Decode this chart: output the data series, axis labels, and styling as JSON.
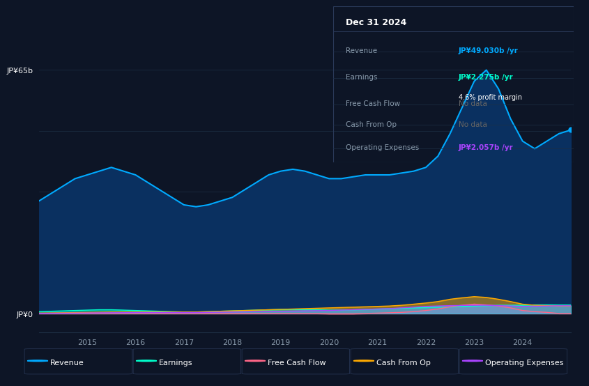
{
  "background_color": "#0d1526",
  "chart_bg_color": "#0d1526",
  "grid_color": "#1e2f45",
  "text_color": "#ffffff",
  "axis_label_color": "#8899aa",
  "years": [
    2014.0,
    2014.25,
    2014.5,
    2014.75,
    2015.0,
    2015.25,
    2015.5,
    2015.75,
    2016.0,
    2016.25,
    2016.5,
    2016.75,
    2017.0,
    2017.25,
    2017.5,
    2017.75,
    2018.0,
    2018.25,
    2018.5,
    2018.75,
    2019.0,
    2019.25,
    2019.5,
    2019.75,
    2020.0,
    2020.25,
    2020.5,
    2020.75,
    2021.0,
    2021.25,
    2021.5,
    2021.75,
    2022.0,
    2022.25,
    2022.5,
    2022.75,
    2023.0,
    2023.25,
    2023.5,
    2023.75,
    2024.0,
    2024.25,
    2024.5,
    2024.75,
    2025.0
  ],
  "revenue": [
    30,
    32,
    34,
    36,
    37,
    38,
    39,
    38,
    37,
    35,
    33,
    31,
    29,
    28.5,
    29,
    30,
    31,
    33,
    35,
    37,
    38,
    38.5,
    38,
    37,
    36,
    36,
    36.5,
    37,
    37,
    37,
    37.5,
    38,
    39,
    42,
    48,
    55,
    62,
    65,
    60,
    52,
    46,
    44,
    46,
    48,
    49
  ],
  "earnings": [
    0.5,
    0.6,
    0.7,
    0.8,
    0.9,
    1.0,
    1.0,
    0.9,
    0.8,
    0.7,
    0.6,
    0.5,
    0.4,
    0.4,
    0.5,
    0.6,
    0.7,
    0.8,
    0.9,
    1.0,
    1.1,
    1.1,
    1.0,
    1.0,
    0.9,
    0.9,
    1.0,
    1.1,
    1.2,
    1.3,
    1.4,
    1.5,
    1.6,
    1.7,
    1.8,
    1.9,
    2.0,
    2.1,
    2.2,
    2.2,
    2.2,
    2.3,
    2.3,
    2.275,
    2.275
  ],
  "free_cash_flow": [
    0.0,
    0.0,
    0.0,
    0.0,
    0.0,
    0.0,
    0.0,
    0.0,
    0.0,
    0.0,
    0.0,
    0.0,
    0.0,
    0.0,
    0.0,
    0.0,
    0.0,
    0.0,
    0.0,
    0.0,
    0.0,
    0.0,
    0.0,
    0.0,
    -0.1,
    -0.1,
    -0.1,
    0.0,
    0.1,
    0.2,
    0.3,
    0.5,
    0.8,
    1.2,
    1.8,
    2.2,
    2.5,
    2.3,
    2.0,
    1.5,
    0.8,
    0.5,
    0.3,
    0.0,
    0.0
  ],
  "cash_from_op": [
    0.1,
    0.15,
    0.2,
    0.25,
    0.3,
    0.35,
    0.4,
    0.4,
    0.4,
    0.4,
    0.4,
    0.4,
    0.4,
    0.4,
    0.5,
    0.6,
    0.7,
    0.8,
    0.9,
    1.0,
    1.1,
    1.2,
    1.3,
    1.4,
    1.5,
    1.6,
    1.7,
    1.8,
    1.9,
    2.0,
    2.2,
    2.5,
    2.8,
    3.2,
    3.8,
    4.2,
    4.5,
    4.3,
    3.8,
    3.2,
    2.5,
    2.2,
    2.1,
    2.0,
    2.0
  ],
  "operating_expenses": [
    0.05,
    0.08,
    0.1,
    0.12,
    0.15,
    0.18,
    0.2,
    0.22,
    0.25,
    0.25,
    0.25,
    0.25,
    0.25,
    0.25,
    0.3,
    0.35,
    0.4,
    0.45,
    0.5,
    0.55,
    0.6,
    0.65,
    0.7,
    0.75,
    0.8,
    0.9,
    1.0,
    1.1,
    1.2,
    1.3,
    1.5,
    1.7,
    1.9,
    2.0,
    2.1,
    2.15,
    2.2,
    2.2,
    2.1,
    2.0,
    1.9,
    1.95,
    2.0,
    2.057,
    2.057
  ],
  "revenue_color": "#00aaff",
  "revenue_fill": "#0a3060",
  "earnings_color": "#00ffcc",
  "free_cash_flow_color": "#ff6688",
  "cash_from_op_color": "#ffaa00",
  "operating_expenses_color": "#aa44ff",
  "ylim_top": 70,
  "ylim_bottom": -5,
  "ytick_labels": [
    "JP¥0",
    "JP¥65b"
  ],
  "ytick_positions": [
    0,
    65
  ],
  "xtick_labels": [
    "2015",
    "2016",
    "2017",
    "2018",
    "2019",
    "2020",
    "2021",
    "2022",
    "2023",
    "2024"
  ],
  "xtick_positions": [
    2015,
    2016,
    2017,
    2018,
    2019,
    2020,
    2021,
    2022,
    2023,
    2024
  ],
  "legend_items": [
    "Revenue",
    "Earnings",
    "Free Cash Flow",
    "Cash From Op",
    "Operating Expenses"
  ],
  "legend_colors": [
    "#00aaff",
    "#00ffcc",
    "#ff6688",
    "#ffaa00",
    "#aa44ff"
  ],
  "info_box": {
    "title": "Dec 31 2024",
    "rows": [
      {
        "label": "Revenue",
        "value": "JP¥49.030b /yr",
        "value_color": "#00aaff",
        "note": null
      },
      {
        "label": "Earnings",
        "value": "JP¥2.275b /yr",
        "value_color": "#00ffcc",
        "note": "4.6% profit margin"
      },
      {
        "label": "Free Cash Flow",
        "value": "No data",
        "value_color": "#666666",
        "note": null
      },
      {
        "label": "Cash From Op",
        "value": "No data",
        "value_color": "#666666",
        "note": null
      },
      {
        "label": "Operating Expenses",
        "value": "JP¥2.057b /yr",
        "value_color": "#aa44ff",
        "note": null
      }
    ]
  }
}
